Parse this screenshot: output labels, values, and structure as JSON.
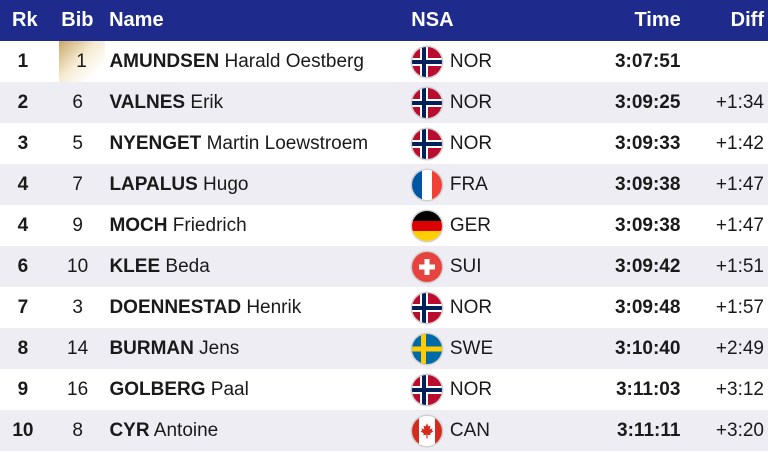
{
  "header": {
    "rank": "Rk",
    "bib": "Bib",
    "name": "Name",
    "nsa": "NSA",
    "time": "Time",
    "diff": "Diff"
  },
  "colors": {
    "header_bg": "#1e2a8c",
    "alt_row": "#ededf3",
    "leader_bib": "#c9a867"
  },
  "rows": [
    {
      "rank": "1",
      "bib": "1",
      "last": "AMUNDSEN",
      "first": "Harald Oestberg",
      "flag": "norway-flag-icon",
      "nsa": "NOR",
      "time": "3:07:51",
      "diff": ""
    },
    {
      "rank": "2",
      "bib": "6",
      "last": "VALNES",
      "first": "Erik",
      "flag": "norway-flag-icon",
      "nsa": "NOR",
      "time": "3:09:25",
      "diff": "+1:34"
    },
    {
      "rank": "3",
      "bib": "5",
      "last": "NYENGET",
      "first": "Martin Loewstroem",
      "flag": "norway-flag-icon",
      "nsa": "NOR",
      "time": "3:09:33",
      "diff": "+1:42"
    },
    {
      "rank": "4",
      "bib": "7",
      "last": "LAPALUS",
      "first": "Hugo",
      "flag": "france-flag-icon",
      "nsa": "FRA",
      "time": "3:09:38",
      "diff": "+1:47"
    },
    {
      "rank": "4",
      "bib": "9",
      "last": "MOCH",
      "first": "Friedrich",
      "flag": "germany-flag-icon",
      "nsa": "GER",
      "time": "3:09:38",
      "diff": "+1:47"
    },
    {
      "rank": "6",
      "bib": "10",
      "last": "KLEE",
      "first": "Beda",
      "flag": "switzerland-flag-icon",
      "nsa": "SUI",
      "time": "3:09:42",
      "diff": "+1:51"
    },
    {
      "rank": "7",
      "bib": "3",
      "last": "DOENNESTAD",
      "first": "Henrik",
      "flag": "norway-flag-icon",
      "nsa": "NOR",
      "time": "3:09:48",
      "diff": "+1:57"
    },
    {
      "rank": "8",
      "bib": "14",
      "last": "BURMAN",
      "first": "Jens",
      "flag": "sweden-flag-icon",
      "nsa": "SWE",
      "time": "3:10:40",
      "diff": "+2:49"
    },
    {
      "rank": "9",
      "bib": "16",
      "last": "GOLBERG",
      "first": "Paal",
      "flag": "norway-flag-icon",
      "nsa": "NOR",
      "time": "3:11:03",
      "diff": "+3:12"
    },
    {
      "rank": "10",
      "bib": "8",
      "last": "CYR",
      "first": "Antoine",
      "flag": "canada-flag-icon",
      "nsa": "CAN",
      "time": "3:11:11",
      "diff": "+3:20"
    }
  ]
}
